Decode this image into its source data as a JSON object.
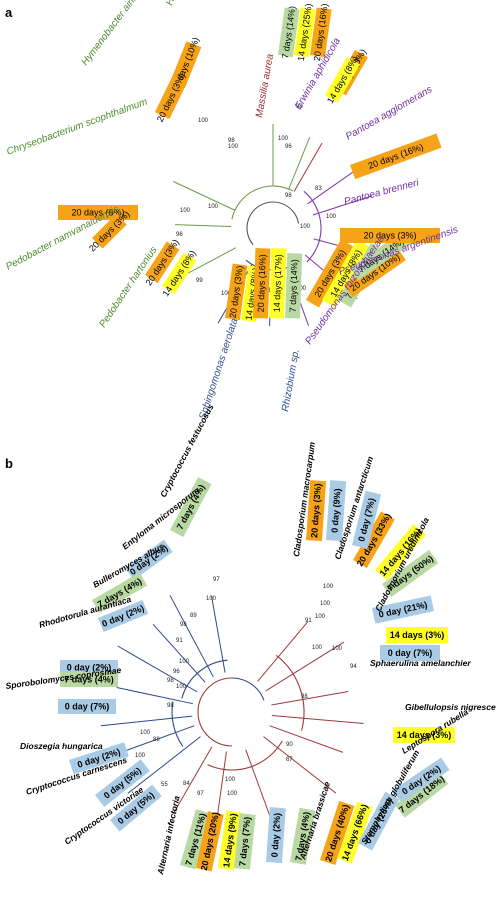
{
  "colors": {
    "orange": "#f7a318",
    "yellow": "#ffff2a",
    "green": "#b9d9a3",
    "blue": "#a9cbe6",
    "green_text": "#4e8a2e",
    "purple_text": "#7030a0",
    "red_text": "#a02b2b",
    "blue_text": "#2e4f8a",
    "green_branch": "#6b9a4a",
    "purple_branch": "#7a3aa6",
    "red_branch": "#a03a3a",
    "blue_branch": "#2c4a8a"
  },
  "panel_a": {
    "letter": "a",
    "taxa": [
      {
        "name": "Hymenobacter norwichensis",
        "color": "green_text",
        "tags": [
          {
            "text": "20 days (10%)",
            "color": "orange"
          }
        ]
      },
      {
        "name": "Hymenobacter ainsenaisoli",
        "color": "green_text",
        "tags": [
          {
            "text": "20 days (3%)",
            "color": "orange"
          }
        ]
      },
      {
        "name": "Chryseobacterium scophthalmum",
        "color": "green_text",
        "tags": [
          {
            "text": "20 days (6%)",
            "color": "orange"
          }
        ]
      },
      {
        "name": "Pedobacter namvanaiuensis",
        "color": "green_text",
        "tags": [
          {
            "text": "20 days (3%)",
            "color": "orange"
          }
        ]
      },
      {
        "name": "Pedobacter hartonius",
        "color": "green_text",
        "tags": [
          {
            "text": "20 days (3%)",
            "color": "orange"
          },
          {
            "text": "14 days (8%)",
            "color": "yellow"
          }
        ]
      },
      {
        "name": "Sphingomonas aerolata",
        "color": "blue_text",
        "tags": [
          {
            "text": "20 days (3%)",
            "color": "orange"
          },
          {
            "text": "14 days (8%)",
            "color": "yellow"
          }
        ]
      },
      {
        "name": "Rhizobium sp.",
        "color": "blue_text",
        "tags": [
          {
            "text": "20 days (16%)",
            "color": "orange"
          },
          {
            "text": "14 days (17%)",
            "color": "yellow"
          },
          {
            "text": "7 days (14%)",
            "color": "green"
          }
        ]
      },
      {
        "name": "Pseudomonas rhizosphaerae",
        "color": "purple_text",
        "tags": [
          {
            "text": "20 days (3%)",
            "color": "orange"
          },
          {
            "text": "14 days (8%)",
            "color": "yellow"
          },
          {
            "text": "7 days (14%)",
            "color": "green"
          }
        ]
      },
      {
        "name": "Pseudomonas argentinensis",
        "color": "purple_text",
        "tags": [
          {
            "text": "20 days (10%)",
            "color": "orange"
          },
          {
            "text": "7 days (14%)",
            "color": "green"
          }
        ]
      },
      {
        "name": "Pantoea brenneri",
        "color": "purple_text",
        "tags": [
          {
            "text": "20 days (3%)",
            "color": "orange"
          }
        ]
      },
      {
        "name": "Pantoea agglomerans",
        "color": "purple_text",
        "tags": [
          {
            "text": "20 days (16%)",
            "color": "orange"
          }
        ]
      },
      {
        "name": "Erwinia aphidicola",
        "color": "purple_text",
        "tags": [
          {
            "text": "20 days (3%)",
            "color": "orange"
          },
          {
            "text": "14 days (8%)",
            "color": "yellow"
          }
        ]
      },
      {
        "name": "Massilia aurea",
        "color": "red_text",
        "tags": [
          {
            "text": "7 days (14%)",
            "color": "green"
          },
          {
            "text": "14 days (25%)",
            "color": "yellow"
          },
          {
            "text": "20 days (16%)",
            "color": "orange"
          }
        ]
      }
    ],
    "bootstrap": [
      {
        "t": "100"
      },
      {
        "t": "100"
      },
      {
        "t": "98"
      },
      {
        "t": "100"
      },
      {
        "t": "100"
      },
      {
        "t": "96"
      },
      {
        "t": "99"
      },
      {
        "t": "100"
      },
      {
        "t": "92"
      },
      {
        "t": "100"
      },
      {
        "t": "100"
      },
      {
        "t": "97"
      },
      {
        "t": "100"
      },
      {
        "t": "98"
      },
      {
        "t": "96"
      },
      {
        "t": "83"
      },
      {
        "t": "98"
      },
      {
        "t": "100"
      },
      {
        "t": "100"
      }
    ]
  },
  "panel_b": {
    "letter": "b",
    "taxa": [
      {
        "name": "Cryptococcus festucosus",
        "tags": [
          {
            "text": "7 days (4%)",
            "color": "green"
          }
        ]
      },
      {
        "name": "Entyloma microsporum",
        "tags": [
          {
            "text": "0 day (2%)",
            "color": "blue"
          }
        ]
      },
      {
        "name": "Bulleromyces albus",
        "tags": [
          {
            "text": "7 days (4%)",
            "color": "green"
          },
          {
            "text": "0 day (2%)",
            "color": "blue"
          }
        ]
      },
      {
        "name": "Rhodotorula aurantiaca",
        "tags": []
      },
      {
        "name": "Sporobolomyces coprosmae",
        "tags": [
          {
            "text": "0 day (2%)",
            "color": "blue"
          }
        ]
      },
      {
        "name": "Dioszegia hungarica",
        "tags": [
          {
            "text": "7 days (4%)",
            "color": "green"
          },
          {
            "text": "0 day (7%)",
            "color": "blue"
          }
        ]
      },
      {
        "name": "Cryptococcus carnescens",
        "tags": [
          {
            "text": "0 day (2%)",
            "color": "blue"
          }
        ]
      },
      {
        "name": "Cryptococcus victoriae",
        "tags": [
          {
            "text": "0 day (5%)",
            "color": "blue"
          },
          {
            "text": "0 day (5%)",
            "color": "blue"
          }
        ]
      },
      {
        "name": "Alternaria infectoria",
        "tags": [
          {
            "text": "7 days (11%)",
            "color": "green"
          },
          {
            "text": "20 days (20%)",
            "color": "orange"
          }
        ]
      },
      {
        "name": "Alternaria brassicae",
        "tags": [
          {
            "text": "14 days (9%)",
            "color": "yellow"
          },
          {
            "text": "7 days (7%)",
            "color": "green"
          },
          {
            "text": "0 day (2%)",
            "color": "blue"
          },
          {
            "text": "7 days (4%)",
            "color": "green"
          }
        ]
      },
      {
        "name": "Stemphylium globuliferum",
        "tags": [
          {
            "text": "20 days (40%)",
            "color": "orange"
          },
          {
            "text": "14 days (66%)",
            "color": "yellow"
          },
          {
            "text": "0 day (26%)",
            "color": "blue"
          },
          {
            "text": "7 days (18%)",
            "color": "green"
          }
        ]
      },
      {
        "name": "Leptospora rubella",
        "tags": [
          {
            "text": "0 day (2%)",
            "color": "blue"
          }
        ]
      },
      {
        "name": "Gibellulopsis nigrescens",
        "tags": [
          {
            "text": "14 days (3%)",
            "color": "yellow"
          }
        ]
      },
      {
        "name": "Sphaerulina amelanchier",
        "tags": [
          {
            "text": "0 day (7%)",
            "color": "blue"
          }
        ]
      },
      {
        "name": "Cladosporium uredinicola",
        "tags": [
          {
            "text": "14 days (3%)",
            "color": "yellow"
          },
          {
            "text": "0 day (21%)",
            "color": "blue"
          },
          {
            "text": "7 days (50%)",
            "color": "green"
          },
          {
            "text": "14 days (16%)",
            "color": "yellow"
          },
          {
            "text": "20 days (33%)",
            "color": "orange"
          }
        ]
      },
      {
        "name": "Cladosporium antarcticum",
        "tags": [
          {
            "text": "0 day (7%)",
            "color": "blue"
          }
        ]
      },
      {
        "name": "Cladosporium macrocarpum",
        "tags": [
          {
            "text": "0 day (9%)",
            "color": "blue"
          },
          {
            "text": "20 days (3%)",
            "color": "orange"
          }
        ]
      }
    ],
    "bootstrap": [
      {
        "t": "97"
      },
      {
        "t": "100"
      },
      {
        "t": "89"
      },
      {
        "t": "98"
      },
      {
        "t": "91"
      },
      {
        "t": "100"
      },
      {
        "t": "96"
      },
      {
        "t": "100"
      },
      {
        "t": "98"
      },
      {
        "t": "98"
      },
      {
        "t": "100"
      },
      {
        "t": "88"
      },
      {
        "t": "100"
      },
      {
        "t": "55"
      },
      {
        "t": "84"
      },
      {
        "t": "97"
      },
      {
        "t": "100"
      },
      {
        "t": "100"
      },
      {
        "t": "67"
      },
      {
        "t": "90"
      },
      {
        "t": "98"
      },
      {
        "t": "100"
      },
      {
        "t": "91"
      },
      {
        "t": "100"
      },
      {
        "t": "100"
      },
      {
        "t": "100"
      },
      {
        "t": "100"
      },
      {
        "t": "94"
      }
    ]
  }
}
